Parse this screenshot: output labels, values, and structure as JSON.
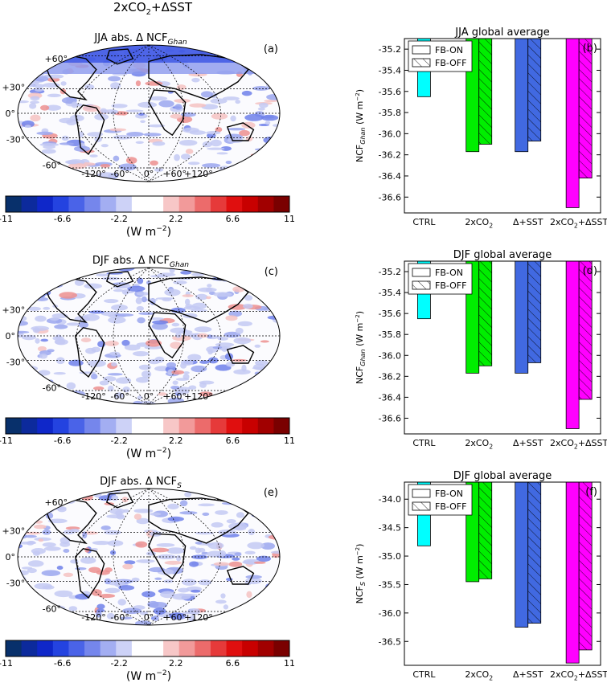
{
  "suptitle": "2xCO$_2$+ΔSST",
  "maps": [
    {
      "id": "a",
      "title": "JJA abs. Δ NCF",
      "title_sub": "Ghan",
      "panel_label": "(a)",
      "lat_labels": [
        "+60°",
        "+30°",
        "0°",
        "-30°",
        "-60°"
      ],
      "lon_labels": [
        "-120°",
        "-60°",
        "0°",
        "+60°",
        "+120°"
      ]
    },
    {
      "id": "c",
      "title": "DJF abs. Δ NCF",
      "title_sub": "Ghan",
      "panel_label": "(c)",
      "lat_labels": [
        "+30°",
        "0°",
        "-30°",
        "-60°"
      ],
      "lon_labels": [
        "-120°",
        "-60°",
        "0°",
        "+60°",
        "+120°"
      ]
    },
    {
      "id": "e",
      "title": "DJF abs. Δ NCF",
      "title_sub": "S",
      "panel_label": "(e)",
      "lat_labels": [
        "+60°",
        "+30°",
        "0°",
        "-30°",
        "-60°"
      ],
      "lon_labels": [
        "-120°",
        "-60°",
        "0°",
        "+60°",
        "+120°"
      ]
    }
  ],
  "colorbar": {
    "tick_labels": [
      "-11",
      "-6.6",
      "-2.2",
      "2.2",
      "6.6",
      "11"
    ],
    "unit_label": "(W m",
    "unit_sup": "−2",
    "colors": [
      "#08306b",
      "#0c2a9c",
      "#0f27c9",
      "#2443e0",
      "#4a63e8",
      "#7586ec",
      "#a3aef2",
      "#cdd2f7",
      "#ffffff",
      "#ffffff",
      "#f7c7c7",
      "#f29a9a",
      "#ec6b6b",
      "#e63a3a",
      "#e00f0f",
      "#c80000",
      "#a10000",
      "#7a0000"
    ]
  },
  "chart_data": [
    {
      "type": "bar",
      "panel_label": "(b)",
      "title": "JJA global average",
      "ylabel": "NCF",
      "ylabel_sub": "Ghan",
      "ylabel_unit": " (W m",
      "ylabel_sup": "−2",
      "categories": [
        "CTRL",
        "2xCO2",
        "Δ+SST",
        "2xCO2+ΔSST"
      ],
      "category_labels": [
        "CTRL",
        "2xCO",
        "Δ+SST",
        "2xCO"
      ],
      "category_subs": [
        "",
        "2",
        "",
        "2"
      ],
      "category_suffix": [
        "",
        "",
        "",
        "+ΔSST"
      ],
      "ylim": [
        -36.75,
        -35.1
      ],
      "yticks": [
        -35.2,
        -35.4,
        -35.6,
        -35.8,
        -36.0,
        -36.2,
        -36.4,
        -36.6
      ],
      "ytick_labels": [
        "-35.2",
        "-35.4",
        "-35.6",
        "-35.8",
        "-36.0",
        "-36.2",
        "-36.4",
        "-36.6"
      ],
      "colors": [
        "#00ffff",
        "#00ee00",
        "#4169e1",
        "#ff00ff"
      ],
      "legend": [
        "FB-ON",
        "FB-OFF"
      ],
      "legend_position": "top-left",
      "series": [
        {
          "name": "FB-ON",
          "values": [
            -35.65,
            -36.17,
            -36.17,
            -36.7
          ]
        },
        {
          "name": "FB-OFF",
          "values": [
            null,
            -36.1,
            -36.07,
            -36.42
          ]
        }
      ]
    },
    {
      "type": "bar",
      "panel_label": "(d)",
      "title": "DJF global average",
      "ylabel": "NCF",
      "ylabel_sub": "Ghan",
      "ylabel_unit": " (W m",
      "ylabel_sup": "−2",
      "categories": [
        "CTRL",
        "2xCO2",
        "Δ+SST",
        "2xCO2+ΔSST"
      ],
      "category_labels": [
        "CTRL",
        "2xCO",
        "Δ+SST",
        "2xCO"
      ],
      "category_subs": [
        "",
        "2",
        "",
        "2"
      ],
      "category_suffix": [
        "",
        "",
        "",
        "+ΔSST"
      ],
      "ylim": [
        -36.75,
        -35.1
      ],
      "yticks": [
        -35.2,
        -35.4,
        -35.6,
        -35.8,
        -36.0,
        -36.2,
        -36.4,
        -36.6
      ],
      "ytick_labels": [
        "-35.2",
        "-35.4",
        "-35.6",
        "-35.8",
        "-36.0",
        "-36.2",
        "-36.4",
        "-36.6"
      ],
      "colors": [
        "#00ffff",
        "#00ee00",
        "#4169e1",
        "#ff00ff"
      ],
      "legend": [
        "FB-ON",
        "FB-OFF"
      ],
      "legend_position": "top-left",
      "series": [
        {
          "name": "FB-ON",
          "values": [
            -35.65,
            -36.17,
            -36.17,
            -36.7
          ]
        },
        {
          "name": "FB-OFF",
          "values": [
            null,
            -36.1,
            -36.07,
            -36.42
          ]
        }
      ]
    },
    {
      "type": "bar",
      "panel_label": "(f)",
      "title": "DJF global average",
      "ylabel": "NCF",
      "ylabel_sub": "S",
      "ylabel_unit": " (W m",
      "ylabel_sup": "−2",
      "categories": [
        "CTRL",
        "2xCO2",
        "Δ+SST",
        "2xCO2+ΔSST"
      ],
      "category_labels": [
        "CTRL",
        "2xCO",
        "Δ+SST",
        "2xCO"
      ],
      "category_subs": [
        "",
        "2",
        "",
        "2"
      ],
      "category_suffix": [
        "",
        "",
        "",
        "+ΔSST"
      ],
      "ylim": [
        -36.92,
        -33.7
      ],
      "yticks": [
        -34.0,
        -34.5,
        -35.0,
        -35.5,
        -36.0,
        -36.5
      ],
      "ytick_labels": [
        "-34.0",
        "-34.5",
        "-35.0",
        "-35.5",
        "-36.0",
        "-36.5"
      ],
      "colors": [
        "#00ffff",
        "#00ee00",
        "#4169e1",
        "#ff00ff"
      ],
      "legend": [
        "FB-ON",
        "FB-OFF"
      ],
      "legend_position": "top-left",
      "series": [
        {
          "name": "FB-ON",
          "values": [
            -34.82,
            -35.45,
            -36.25,
            -36.88
          ]
        },
        {
          "name": "FB-OFF",
          "values": [
            null,
            -35.4,
            -36.18,
            -36.65
          ]
        }
      ]
    }
  ]
}
